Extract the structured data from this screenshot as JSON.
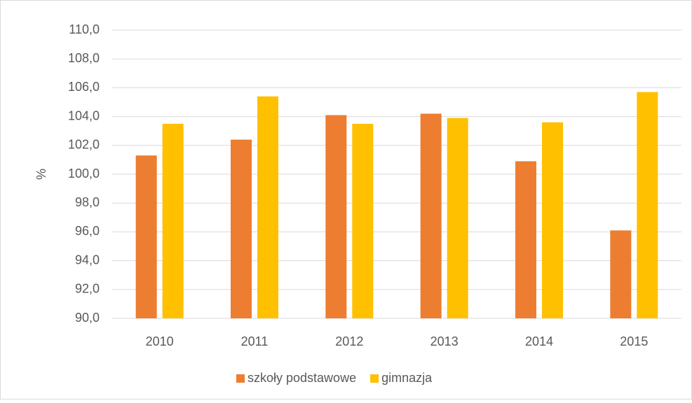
{
  "chart_data": {
    "type": "bar",
    "ylabel": "%",
    "categories": [
      "2010",
      "2011",
      "2012",
      "2013",
      "2014",
      "2015"
    ],
    "series": [
      {
        "name": "szkoły podstawowe",
        "color": "#ed7d31",
        "values": [
          101.3,
          102.4,
          104.1,
          104.2,
          100.9,
          96.1
        ]
      },
      {
        "name": "gimnazja",
        "color": "#ffc000",
        "values": [
          103.5,
          105.4,
          103.5,
          103.9,
          103.6,
          105.7
        ]
      }
    ],
    "ylim": [
      90,
      110
    ],
    "yticks": [
      {
        "value": 90,
        "label": "90,0"
      },
      {
        "value": 92,
        "label": "92,0"
      },
      {
        "value": 94,
        "label": "94,0"
      },
      {
        "value": 96,
        "label": "96,0"
      },
      {
        "value": 98,
        "label": "98,0"
      },
      {
        "value": 100,
        "label": "100,0"
      },
      {
        "value": 102,
        "label": "102,0"
      },
      {
        "value": 104,
        "label": "104,0"
      },
      {
        "value": 106,
        "label": "106,0"
      },
      {
        "value": 108,
        "label": "108,0"
      },
      {
        "value": 110,
        "label": "110,0"
      }
    ],
    "grid": true,
    "legend": "bottom"
  }
}
